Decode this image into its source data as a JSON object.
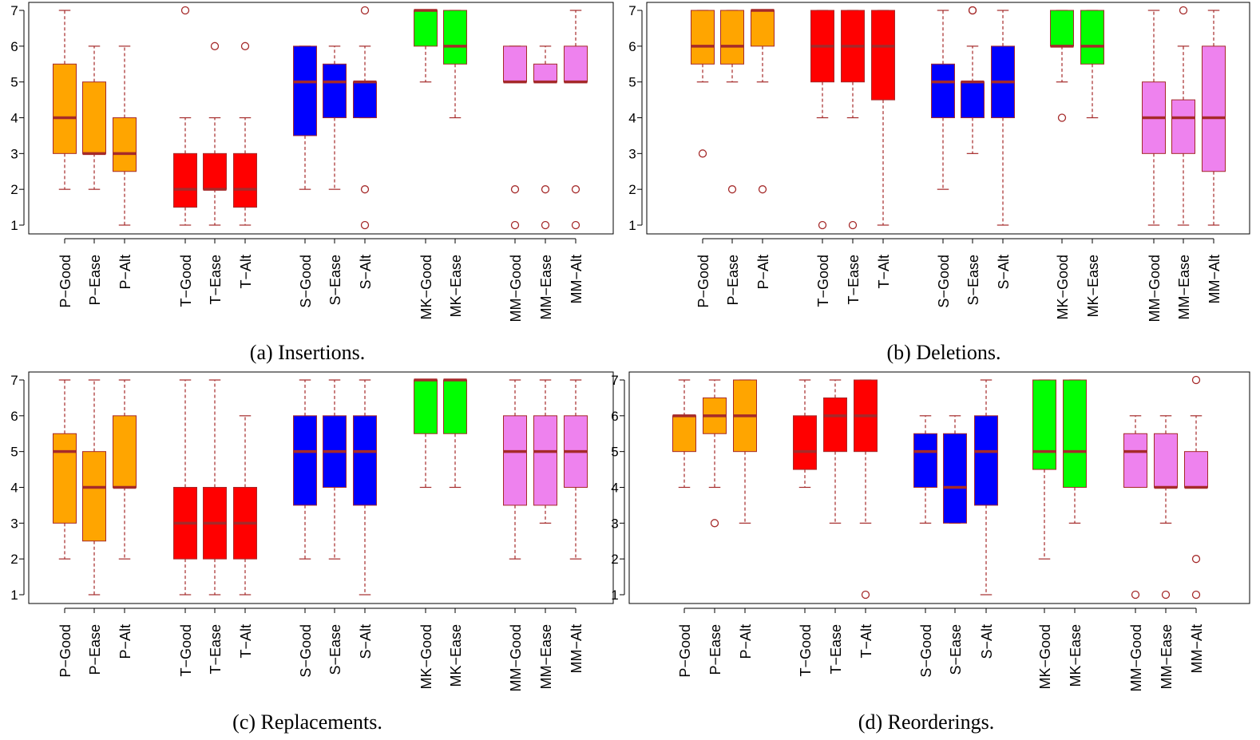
{
  "colors": {
    "P": "#FFA500",
    "T": "#FF0000",
    "S": "#0000FF",
    "MK": "#00FF00",
    "MM": "#EE82EE",
    "median": "#A52A2A",
    "whisker": "#A52A2A",
    "outlier": "#A52A2A",
    "box_border": "#A52A2A"
  },
  "chart_data": [
    {
      "type": "boxplot",
      "title": "(a) Insertions.",
      "ylim": [
        1,
        7
      ],
      "yticks": [
        "1",
        "2",
        "3",
        "4",
        "5",
        "6",
        "7"
      ],
      "series": [
        {
          "label": "P−Good",
          "group": "P",
          "min": 2,
          "q1": 3,
          "median": 4,
          "q3": 5.5,
          "max": 7,
          "outliers": []
        },
        {
          "label": "P−Ease",
          "group": "P",
          "min": 2,
          "q1": 3,
          "median": 3,
          "q3": 5,
          "max": 6,
          "outliers": []
        },
        {
          "label": "P−Alt",
          "group": "P",
          "min": 1,
          "q1": 2.5,
          "median": 3,
          "q3": 4,
          "max": 6,
          "outliers": []
        },
        {
          "label": "T−Good",
          "group": "T",
          "min": 1,
          "q1": 1.5,
          "median": 2,
          "q3": 3,
          "max": 4,
          "outliers": [
            7
          ]
        },
        {
          "label": "T−Ease",
          "group": "T",
          "min": 1,
          "q1": 2,
          "median": 2,
          "q3": 3,
          "max": 4,
          "outliers": [
            6
          ]
        },
        {
          "label": "T−Alt",
          "group": "T",
          "min": 1,
          "q1": 1.5,
          "median": 2,
          "q3": 3,
          "max": 4,
          "outliers": [
            6
          ]
        },
        {
          "label": "S−Good",
          "group": "S",
          "min": 2,
          "q1": 3.5,
          "median": 5,
          "q3": 6,
          "max": 6,
          "outliers": []
        },
        {
          "label": "S−Ease",
          "group": "S",
          "min": 2,
          "q1": 4,
          "median": 5,
          "q3": 5.5,
          "max": 6,
          "outliers": []
        },
        {
          "label": "S−Alt",
          "group": "S",
          "min": 4,
          "q1": 4,
          "median": 5,
          "q3": 5,
          "max": 6,
          "outliers": [
            7,
            2,
            1
          ]
        },
        {
          "label": "MK−Good",
          "group": "MK",
          "min": 5,
          "q1": 6,
          "median": 7,
          "q3": 7,
          "max": 7,
          "outliers": []
        },
        {
          "label": "MK−Ease",
          "group": "MK",
          "min": 4,
          "q1": 5.5,
          "median": 6,
          "q3": 7,
          "max": 7,
          "outliers": []
        },
        {
          "label": "MM−Good",
          "group": "MM",
          "min": 5,
          "q1": 5,
          "median": 5,
          "q3": 6,
          "max": 6,
          "outliers": [
            2,
            1
          ]
        },
        {
          "label": "MM−Ease",
          "group": "MM",
          "min": 5,
          "q1": 5,
          "median": 5,
          "q3": 5.5,
          "max": 6,
          "outliers": [
            2,
            1
          ]
        },
        {
          "label": "MM−Alt",
          "group": "MM",
          "min": 5,
          "q1": 5,
          "median": 5,
          "q3": 6,
          "max": 7,
          "outliers": [
            2,
            1
          ]
        }
      ]
    },
    {
      "type": "boxplot",
      "title": "(b) Deletions.",
      "ylim": [
        1,
        7
      ],
      "yticks": [
        "1",
        "2",
        "3",
        "4",
        "5",
        "6",
        "7"
      ],
      "series": [
        {
          "label": "P−Good",
          "group": "P",
          "min": 5,
          "q1": 5.5,
          "median": 6,
          "q3": 7,
          "max": 7,
          "outliers": [
            3
          ]
        },
        {
          "label": "P−Ease",
          "group": "P",
          "min": 5,
          "q1": 5.5,
          "median": 6,
          "q3": 7,
          "max": 7,
          "outliers": [
            2
          ]
        },
        {
          "label": "P−Alt",
          "group": "P",
          "min": 5,
          "q1": 6,
          "median": 7,
          "q3": 7,
          "max": 7,
          "outliers": [
            2
          ]
        },
        {
          "label": "T−Good",
          "group": "T",
          "min": 4,
          "q1": 5,
          "median": 6,
          "q3": 7,
          "max": 7,
          "outliers": [
            1
          ]
        },
        {
          "label": "T−Ease",
          "group": "T",
          "min": 4,
          "q1": 5,
          "median": 6,
          "q3": 7,
          "max": 7,
          "outliers": [
            1
          ]
        },
        {
          "label": "T−Alt",
          "group": "T",
          "min": 1,
          "q1": 4.5,
          "median": 6,
          "q3": 7,
          "max": 7,
          "outliers": []
        },
        {
          "label": "S−Good",
          "group": "S",
          "min": 2,
          "q1": 4,
          "median": 5,
          "q3": 5.5,
          "max": 7,
          "outliers": []
        },
        {
          "label": "S−Ease",
          "group": "S",
          "min": 3,
          "q1": 4,
          "median": 5,
          "q3": 5,
          "max": 6,
          "outliers": [
            7,
            7
          ]
        },
        {
          "label": "S−Alt",
          "group": "S",
          "min": 1,
          "q1": 4,
          "median": 5,
          "q3": 6,
          "max": 7,
          "outliers": []
        },
        {
          "label": "MK−Good",
          "group": "MK",
          "min": 5,
          "q1": 6,
          "median": 6,
          "q3": 7,
          "max": 7,
          "outliers": [
            4
          ]
        },
        {
          "label": "MK−Ease",
          "group": "MK",
          "min": 4,
          "q1": 5.5,
          "median": 6,
          "q3": 7,
          "max": 7,
          "outliers": []
        },
        {
          "label": "MM−Good",
          "group": "MM",
          "min": 1,
          "q1": 3,
          "median": 4,
          "q3": 5,
          "max": 7,
          "outliers": []
        },
        {
          "label": "MM−Ease",
          "group": "MM",
          "min": 1,
          "q1": 3,
          "median": 4,
          "q3": 4.5,
          "max": 6,
          "outliers": [
            7
          ]
        },
        {
          "label": "MM−Alt",
          "group": "MM",
          "min": 1,
          "q1": 2.5,
          "median": 4,
          "q3": 6,
          "max": 7,
          "outliers": []
        }
      ]
    },
    {
      "type": "boxplot",
      "title": "(c) Replacements.",
      "ylim": [
        1,
        7
      ],
      "yticks": [
        "1",
        "2",
        "3",
        "4",
        "5",
        "6",
        "7"
      ],
      "series": [
        {
          "label": "P−Good",
          "group": "P",
          "min": 2,
          "q1": 3,
          "median": 5,
          "q3": 5.5,
          "max": 7,
          "outliers": []
        },
        {
          "label": "P−Ease",
          "group": "P",
          "min": 1,
          "q1": 2.5,
          "median": 4,
          "q3": 5,
          "max": 7,
          "outliers": []
        },
        {
          "label": "P−Alt",
          "group": "P",
          "min": 2,
          "q1": 4,
          "median": 4,
          "q3": 6,
          "max": 7,
          "outliers": []
        },
        {
          "label": "T−Good",
          "group": "T",
          "min": 1,
          "q1": 2,
          "median": 3,
          "q3": 4,
          "max": 7,
          "outliers": []
        },
        {
          "label": "T−Ease",
          "group": "T",
          "min": 1,
          "q1": 2,
          "median": 3,
          "q3": 4,
          "max": 7,
          "outliers": []
        },
        {
          "label": "T−Alt",
          "group": "T",
          "min": 1,
          "q1": 2,
          "median": 3,
          "q3": 4,
          "max": 6,
          "outliers": []
        },
        {
          "label": "S−Good",
          "group": "S",
          "min": 2,
          "q1": 3.5,
          "median": 5,
          "q3": 6,
          "max": 7,
          "outliers": []
        },
        {
          "label": "S−Ease",
          "group": "S",
          "min": 2,
          "q1": 4,
          "median": 5,
          "q3": 6,
          "max": 7,
          "outliers": []
        },
        {
          "label": "S−Alt",
          "group": "S",
          "min": 1,
          "q1": 3.5,
          "median": 5,
          "q3": 6,
          "max": 7,
          "outliers": []
        },
        {
          "label": "MK−Good",
          "group": "MK",
          "min": 4,
          "q1": 5.5,
          "median": 7,
          "q3": 7,
          "max": 7,
          "outliers": []
        },
        {
          "label": "MK−Ease",
          "group": "MK",
          "min": 4,
          "q1": 5.5,
          "median": 7,
          "q3": 7,
          "max": 7,
          "outliers": []
        },
        {
          "label": "MM−Good",
          "group": "MM",
          "min": 2,
          "q1": 3.5,
          "median": 5,
          "q3": 6,
          "max": 7,
          "outliers": []
        },
        {
          "label": "MM−Ease",
          "group": "MM",
          "min": 3,
          "q1": 3.5,
          "median": 5,
          "q3": 6,
          "max": 7,
          "outliers": []
        },
        {
          "label": "MM−Alt",
          "group": "MM",
          "min": 2,
          "q1": 4,
          "median": 5,
          "q3": 6,
          "max": 7,
          "outliers": []
        }
      ]
    },
    {
      "type": "boxplot",
      "title": "(d) Reorderings.",
      "ylim": [
        1,
        7
      ],
      "yticks": [
        "1",
        "2",
        "3",
        "4",
        "5",
        "6",
        "7"
      ],
      "series": [
        {
          "label": "P−Good",
          "group": "P",
          "min": 4,
          "q1": 5,
          "median": 6,
          "q3": 6,
          "max": 7,
          "outliers": []
        },
        {
          "label": "P−Ease",
          "group": "P",
          "min": 4,
          "q1": 5.5,
          "median": 6,
          "q3": 6.5,
          "max": 7,
          "outliers": [
            3
          ]
        },
        {
          "label": "P−Alt",
          "group": "P",
          "min": 3,
          "q1": 5,
          "median": 6,
          "q3": 7,
          "max": 7,
          "outliers": []
        },
        {
          "label": "T−Good",
          "group": "T",
          "min": 4,
          "q1": 4.5,
          "median": 5,
          "q3": 6,
          "max": 7,
          "outliers": []
        },
        {
          "label": "T−Ease",
          "group": "T",
          "min": 3,
          "q1": 5,
          "median": 6,
          "q3": 6.5,
          "max": 7,
          "outliers": []
        },
        {
          "label": "T−Alt",
          "group": "T",
          "min": 3,
          "q1": 5,
          "median": 6,
          "q3": 7,
          "max": 7,
          "outliers": [
            1
          ]
        },
        {
          "label": "S−Good",
          "group": "S",
          "min": 3,
          "q1": 4,
          "median": 5,
          "q3": 5.5,
          "max": 6,
          "outliers": []
        },
        {
          "label": "S−Ease",
          "group": "S",
          "min": 3,
          "q1": 3,
          "median": 4,
          "q3": 5.5,
          "max": 6,
          "outliers": []
        },
        {
          "label": "S−Alt",
          "group": "S",
          "min": 1,
          "q1": 3.5,
          "median": 5,
          "q3": 6,
          "max": 7,
          "outliers": []
        },
        {
          "label": "MK−Good",
          "group": "MK",
          "min": 2,
          "q1": 4.5,
          "median": 5,
          "q3": 7,
          "max": 7,
          "outliers": []
        },
        {
          "label": "MK−Ease",
          "group": "MK",
          "min": 3,
          "q1": 4,
          "median": 5,
          "q3": 7,
          "max": 7,
          "outliers": []
        },
        {
          "label": "MM−Good",
          "group": "MM",
          "min": 4,
          "q1": 4,
          "median": 5,
          "q3": 5.5,
          "max": 6,
          "outliers": [
            1
          ]
        },
        {
          "label": "MM−Ease",
          "group": "MM",
          "min": 3,
          "q1": 4,
          "median": 4,
          "q3": 5.5,
          "max": 6,
          "outliers": [
            1
          ]
        },
        {
          "label": "MM−Alt",
          "group": "MM",
          "min": 4,
          "q1": 4,
          "median": 4,
          "q3": 5,
          "max": 6,
          "outliers": [
            7,
            2,
            1
          ]
        }
      ]
    }
  ]
}
